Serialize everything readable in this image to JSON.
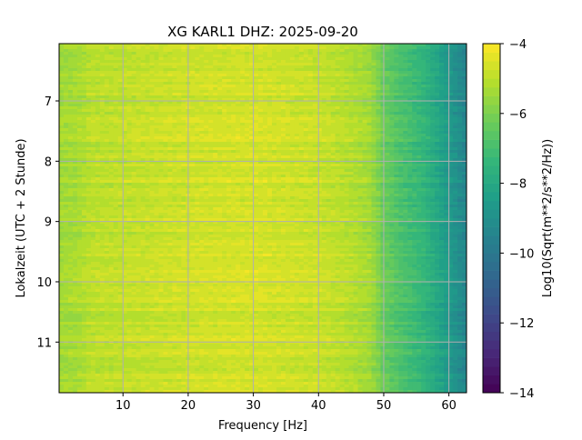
{
  "chart_data": {
    "type": "heatmap",
    "title": "XG KARL1  DHZ: 2025-09-20",
    "xlabel": "Frequency [Hz]",
    "ylabel": "Lokalzeit (UTC + 2 Stunde)",
    "xlim": [
      0.2,
      62.7
    ],
    "ylim": [
      11.84,
      6.05
    ],
    "xticks": [
      10,
      20,
      30,
      40,
      50,
      60
    ],
    "xtick_labels": [
      "10",
      "20",
      "30",
      "40",
      "50",
      "60"
    ],
    "yticks": [
      7,
      8,
      9,
      10,
      11
    ],
    "ytick_labels": [
      "7",
      "8",
      "9",
      "10",
      "11"
    ],
    "grid": true,
    "colorbar": {
      "label": "Log10(Sqrt(m**2/s**2/Hz))",
      "vmin": -14,
      "vmax": -4,
      "levels": 40,
      "ticks": [
        -4,
        -6,
        -8,
        -10,
        -12,
        -14
      ],
      "tick_labels": [
        "−4",
        "−6",
        "−8",
        "−10",
        "−12",
        "−14"
      ],
      "colormap": "viridis"
    },
    "frequency_profile": {
      "freq_hz": [
        0,
        3,
        5,
        10,
        20,
        30,
        40,
        45,
        48,
        50,
        53,
        56,
        58,
        60,
        62.5
      ],
      "mean_log10_amplitude": [
        -5.4,
        -5.3,
        -5.0,
        -4.9,
        -4.7,
        -4.6,
        -4.8,
        -5.1,
        -5.4,
        -6.3,
        -6.9,
        -7.4,
        -8.0,
        -8.6,
        -9.4
      ]
    }
  }
}
